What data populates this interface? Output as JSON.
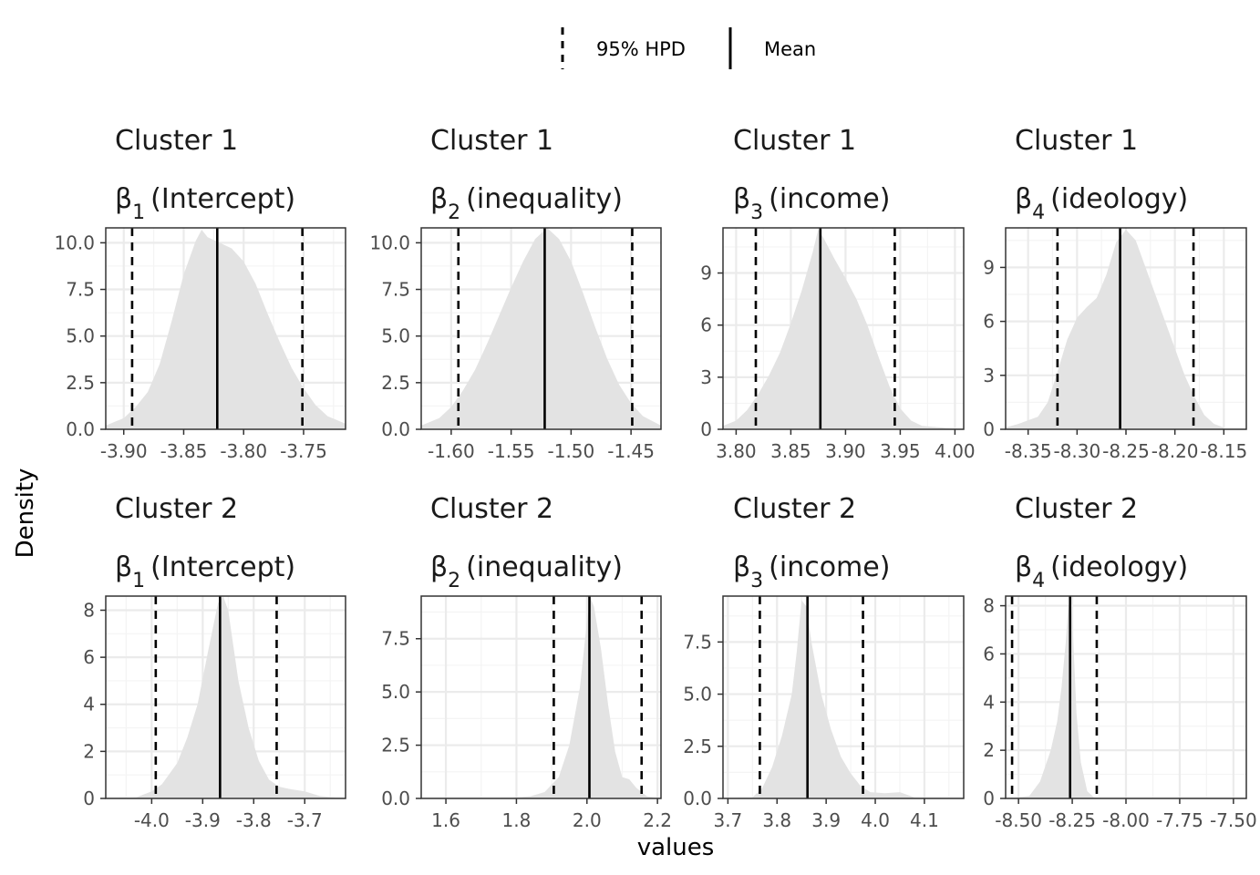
{
  "chart_data": {
    "type": "area",
    "xlabel": "values",
    "ylabel": "Density",
    "legend": {
      "placement": "top",
      "entries": [
        {
          "label": "95% HPD",
          "linetype": "dashed"
        },
        {
          "label": "Mean",
          "linetype": "solid"
        }
      ]
    },
    "colors": {
      "fill": "#e3e3e3",
      "line": "#000000",
      "grid_major": "#ebebeb",
      "grid_minor": "#f4f4f4",
      "border": "#333333"
    },
    "grid": true,
    "panels": [
      {
        "title": "Cluster 1",
        "param_symbol": "β",
        "param_sub": "1",
        "param_label": "(Intercept)",
        "xlim": [
          -3.915,
          -3.715
        ],
        "ylim": [
          0,
          10.8
        ],
        "xticks": [
          -3.9,
          -3.85,
          -3.8,
          -3.75
        ],
        "xtick_labels": [
          "-3.90",
          "-3.85",
          "-3.80",
          "-3.75"
        ],
        "yticks": [
          0,
          2.5,
          5.0,
          7.5,
          10.0
        ],
        "ytick_labels": [
          "0.0",
          "2.5",
          "5.0",
          "7.5",
          "10.0"
        ],
        "mean": -3.822,
        "hpd": [
          -3.893,
          -3.751
        ],
        "density": {
          "x": [
            -3.915,
            -3.9,
            -3.89,
            -3.88,
            -3.87,
            -3.86,
            -3.85,
            -3.84,
            -3.835,
            -3.83,
            -3.82,
            -3.81,
            -3.8,
            -3.79,
            -3.78,
            -3.77,
            -3.76,
            -3.75,
            -3.74,
            -3.73,
            -3.715
          ],
          "y": [
            0.2,
            0.6,
            1.2,
            2.0,
            3.5,
            5.8,
            8.3,
            10.1,
            10.7,
            10.3,
            10.0,
            9.7,
            9.0,
            7.8,
            6.2,
            4.7,
            3.3,
            2.2,
            1.3,
            0.7,
            0.3
          ]
        }
      },
      {
        "title": "Cluster 1",
        "param_symbol": "β",
        "param_sub": "2",
        "param_label": "(inequality)",
        "xlim": [
          -1.625,
          -1.425
        ],
        "ylim": [
          0,
          10.8
        ],
        "xticks": [
          -1.6,
          -1.55,
          -1.5,
          -1.45
        ],
        "xtick_labels": [
          "-1.60",
          "-1.55",
          "-1.50",
          "-1.45"
        ],
        "yticks": [
          0,
          2.5,
          5.0,
          7.5,
          10.0
        ],
        "ytick_labels": [
          "0.0",
          "2.5",
          "5.0",
          "7.5",
          "10.0"
        ],
        "mean": -1.522,
        "hpd": [
          -1.594,
          -1.449
        ],
        "density": {
          "x": [
            -1.625,
            -1.61,
            -1.6,
            -1.59,
            -1.58,
            -1.57,
            -1.56,
            -1.55,
            -1.54,
            -1.53,
            -1.52,
            -1.51,
            -1.5,
            -1.49,
            -1.48,
            -1.47,
            -1.46,
            -1.45,
            -1.44,
            -1.425
          ],
          "y": [
            0.2,
            0.6,
            1.2,
            2.1,
            3.2,
            4.6,
            6.1,
            7.6,
            9.0,
            10.2,
            10.8,
            10.2,
            9.0,
            7.3,
            5.5,
            3.8,
            2.4,
            1.4,
            0.7,
            0.2
          ]
        }
      },
      {
        "title": "Cluster 1",
        "param_symbol": "β",
        "param_sub": "3",
        "param_label": "(income)",
        "xlim": [
          3.788,
          4.008
        ],
        "ylim": [
          0,
          11.6
        ],
        "xticks": [
          3.8,
          3.85,
          3.9,
          3.95,
          4.0
        ],
        "xtick_labels": [
          "3.80",
          "3.85",
          "3.90",
          "3.95",
          "4.00"
        ],
        "yticks": [
          0,
          3,
          6,
          9
        ],
        "ytick_labels": [
          "0",
          "3",
          "6",
          "9"
        ],
        "mean": 3.877,
        "hpd": [
          3.818,
          3.945
        ],
        "density": {
          "x": [
            3.788,
            3.8,
            3.81,
            3.82,
            3.83,
            3.84,
            3.85,
            3.86,
            3.87,
            3.875,
            3.88,
            3.89,
            3.9,
            3.91,
            3.92,
            3.93,
            3.94,
            3.95,
            3.96,
            3.97,
            4.008
          ],
          "y": [
            0.2,
            0.5,
            1.1,
            2.0,
            3.1,
            4.4,
            6.1,
            8.0,
            10.2,
            11.5,
            11.0,
            9.8,
            8.7,
            7.5,
            6.0,
            4.2,
            2.5,
            1.2,
            0.5,
            0.2,
            0.0
          ]
        }
      },
      {
        "title": "Cluster 1",
        "param_symbol": "β",
        "param_sub": "4",
        "param_label": "(ideology)",
        "xlim": [
          -8.373,
          -8.127
        ],
        "ylim": [
          0,
          11.2
        ],
        "xticks": [
          -8.35,
          -8.3,
          -8.25,
          -8.2,
          -8.15
        ],
        "xtick_labels": [
          "-8.35",
          "-8.30",
          "-8.25",
          "-8.20",
          "-8.15"
        ],
        "yticks": [
          0,
          3,
          6,
          9
        ],
        "ytick_labels": [
          "0",
          "3",
          "6",
          "9"
        ],
        "mean": -8.256,
        "hpd": [
          -8.32,
          -8.181
        ],
        "density": {
          "x": [
            -8.373,
            -8.36,
            -8.35,
            -8.34,
            -8.33,
            -8.32,
            -8.31,
            -8.3,
            -8.29,
            -8.28,
            -8.27,
            -8.26,
            -8.25,
            -8.24,
            -8.23,
            -8.22,
            -8.21,
            -8.2,
            -8.19,
            -8.18,
            -8.17,
            -8.16,
            -8.15
          ],
          "y": [
            0.1,
            0.3,
            0.5,
            0.7,
            1.5,
            3.2,
            5.0,
            6.2,
            6.8,
            7.3,
            8.6,
            10.4,
            11.1,
            10.5,
            9.0,
            7.5,
            6.0,
            4.5,
            3.0,
            1.8,
            0.8,
            0.3,
            0.1
          ]
        }
      },
      {
        "title": "Cluster 2",
        "param_symbol": "β",
        "param_sub": "1",
        "param_label": "(Intercept)",
        "xlim": [
          -4.09,
          -3.62
        ],
        "ylim": [
          0,
          8.6
        ],
        "xticks": [
          -4.0,
          -3.9,
          -3.8,
          -3.7
        ],
        "xtick_labels": [
          "-4.0",
          "-3.9",
          "-3.8",
          "-3.7"
        ],
        "yticks": [
          0,
          2,
          4,
          6,
          8
        ],
        "ytick_labels": [
          "0",
          "2",
          "4",
          "6",
          "8"
        ],
        "mean": -3.866,
        "hpd": [
          -3.992,
          -3.755
        ],
        "density": {
          "x": [
            -4.09,
            -4.03,
            -4.0,
            -3.98,
            -3.95,
            -3.93,
            -3.91,
            -3.89,
            -3.87,
            -3.86,
            -3.85,
            -3.84,
            -3.83,
            -3.81,
            -3.79,
            -3.77,
            -3.75,
            -3.73,
            -3.7,
            -3.67,
            -3.62
          ],
          "y": [
            0.0,
            0.05,
            0.3,
            0.6,
            1.5,
            2.6,
            4.0,
            6.2,
            8.3,
            8.6,
            8.0,
            6.5,
            5.0,
            3.0,
            1.6,
            0.8,
            0.5,
            0.4,
            0.3,
            0.1,
            0.0
          ]
        }
      },
      {
        "title": "Cluster 2",
        "param_symbol": "β",
        "param_sub": "2",
        "param_label": "(inequality)",
        "xlim": [
          1.53,
          2.21
        ],
        "ylim": [
          0,
          9.5
        ],
        "xticks": [
          1.6,
          1.8,
          2.0,
          2.2
        ],
        "xtick_labels": [
          "1.6",
          "1.8",
          "2.0",
          "2.2"
        ],
        "yticks": [
          0,
          2.5,
          5.0,
          7.5
        ],
        "ytick_labels": [
          "0.0",
          "2.5",
          "5.0",
          "7.5"
        ],
        "mean": 2.007,
        "hpd": [
          1.906,
          2.155
        ],
        "density": {
          "x": [
            1.53,
            1.7,
            1.78,
            1.84,
            1.88,
            1.92,
            1.95,
            1.98,
            2.0,
            2.01,
            2.02,
            2.04,
            2.06,
            2.08,
            2.1,
            2.12,
            2.14,
            2.17,
            2.21
          ],
          "y": [
            0.0,
            0.0,
            0.03,
            0.1,
            0.3,
            1.0,
            2.5,
            5.2,
            8.3,
            9.4,
            9.0,
            7.0,
            4.4,
            2.2,
            1.0,
            0.9,
            0.5,
            0.1,
            0.0
          ]
        }
      },
      {
        "title": "Cluster 2",
        "param_symbol": "β",
        "param_sub": "3",
        "param_label": "(income)",
        "xlim": [
          3.69,
          4.18
        ],
        "ylim": [
          0,
          9.7
        ],
        "xticks": [
          3.7,
          3.8,
          3.9,
          4.0,
          4.1
        ],
        "xtick_labels": [
          "3.7",
          "3.8",
          "3.9",
          "4.0",
          "4.1"
        ],
        "yticks": [
          0,
          2.5,
          5.0,
          7.5
        ],
        "ytick_labels": [
          "0.0",
          "2.5",
          "5.0",
          "7.5"
        ],
        "mean": 3.862,
        "hpd": [
          3.765,
          3.975
        ],
        "density": {
          "x": [
            3.69,
            3.75,
            3.77,
            3.79,
            3.81,
            3.83,
            3.84,
            3.85,
            3.86,
            3.87,
            3.89,
            3.91,
            3.93,
            3.95,
            3.97,
            3.99,
            4.02,
            4.05,
            4.08,
            4.18
          ],
          "y": [
            0.0,
            0.05,
            0.5,
            1.5,
            3.0,
            5.0,
            7.0,
            9.5,
            9.2,
            7.5,
            5.0,
            3.3,
            2.0,
            1.2,
            0.6,
            0.3,
            0.25,
            0.3,
            0.05,
            0.0
          ]
        }
      },
      {
        "title": "Cluster 2",
        "param_symbol": "β",
        "param_sub": "4",
        "param_label": "(ideology)",
        "xlim": [
          -8.56,
          -7.44
        ],
        "ylim": [
          0,
          8.4
        ],
        "xticks": [
          -8.5,
          -8.25,
          -8.0,
          -7.75,
          -7.5
        ],
        "xtick_labels": [
          "-8.50",
          "-8.25",
          "-8.00",
          "-7.75",
          "-7.50"
        ],
        "yticks": [
          0,
          2,
          4,
          6,
          8
        ],
        "ytick_labels": [
          "0",
          "2",
          "4",
          "6",
          "8"
        ],
        "mean": -8.26,
        "hpd": [
          -8.53,
          -8.136
        ],
        "density": {
          "x": [
            -8.56,
            -8.45,
            -8.4,
            -8.35,
            -8.32,
            -8.3,
            -8.28,
            -8.27,
            -8.26,
            -8.25,
            -8.24,
            -8.23,
            -8.21,
            -8.18,
            -8.15,
            -8.1,
            -7.44
          ],
          "y": [
            0.0,
            0.1,
            0.7,
            2.0,
            3.2,
            4.6,
            6.5,
            7.8,
            8.3,
            7.5,
            5.5,
            3.5,
            1.5,
            0.3,
            0.05,
            0.0,
            0.0
          ]
        }
      }
    ]
  }
}
